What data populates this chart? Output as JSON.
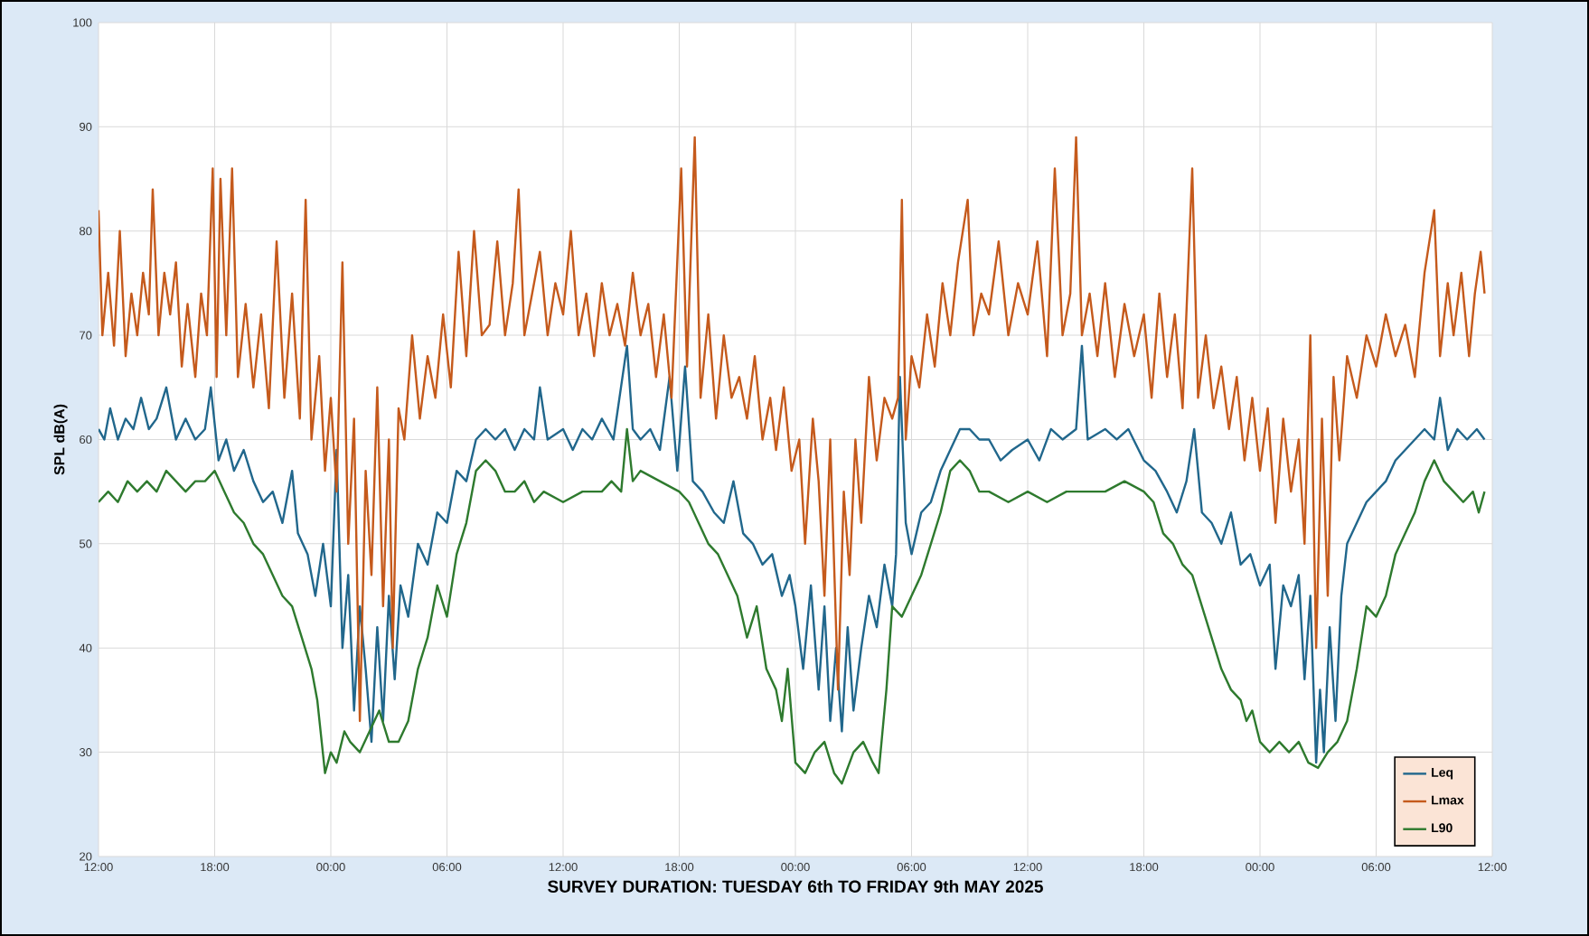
{
  "chart_data": {
    "type": "line",
    "xlabel": "SURVEY DURATION: TUESDAY 6th TO FRIDAY 9th MAY 2025",
    "ylabel": "SPL dB(A)",
    "xlim": [
      "2025-05-06T12:00",
      "2025-05-09T12:00"
    ],
    "ylim": [
      20,
      100
    ],
    "yticks": [
      20,
      30,
      40,
      50,
      60,
      70,
      80,
      90,
      100
    ],
    "xticks": [
      {
        "value": "2025-05-06T12:00",
        "label": "12:00"
      },
      {
        "value": "2025-05-06T18:00",
        "label": "18:00"
      },
      {
        "value": "2025-05-07T00:00",
        "label": "00:00"
      },
      {
        "value": "2025-05-07T06:00",
        "label": "06:00"
      },
      {
        "value": "2025-05-07T12:00",
        "label": "12:00"
      },
      {
        "value": "2025-05-07T18:00",
        "label": "18:00"
      },
      {
        "value": "2025-05-08T00:00",
        "label": "00:00"
      },
      {
        "value": "2025-05-08T06:00",
        "label": "06:00"
      },
      {
        "value": "2025-05-08T12:00",
        "label": "12:00"
      },
      {
        "value": "2025-05-08T18:00",
        "label": "18:00"
      },
      {
        "value": "2025-05-09T00:00",
        "label": "00:00"
      },
      {
        "value": "2025-05-09T06:00",
        "label": "06:00"
      },
      {
        "value": "2025-05-09T12:00",
        "label": "12:00"
      }
    ],
    "grid": true,
    "legend": "bottom right",
    "series": [
      {
        "name": "Leq",
        "color": "#21678c",
        "x": [
          "2025-05-06T12:00",
          "2025-05-06T12:18",
          "2025-05-06T12:36",
          "2025-05-06T13:00",
          "2025-05-06T13:24",
          "2025-05-06T13:48",
          "2025-05-06T14:12",
          "2025-05-06T14:36",
          "2025-05-06T15:00",
          "2025-05-06T15:30",
          "2025-05-06T16:00",
          "2025-05-06T16:30",
          "2025-05-06T17:00",
          "2025-05-06T17:30",
          "2025-05-06T17:48",
          "2025-05-06T18:12",
          "2025-05-06T18:36",
          "2025-05-06T19:00",
          "2025-05-06T19:30",
          "2025-05-06T20:00",
          "2025-05-06T20:30",
          "2025-05-06T21:00",
          "2025-05-06T21:30",
          "2025-05-06T22:00",
          "2025-05-06T22:18",
          "2025-05-06T22:48",
          "2025-05-06T23:12",
          "2025-05-06T23:36",
          "2025-05-07T00:00",
          "2025-05-07T00:18",
          "2025-05-07T00:36",
          "2025-05-07T00:54",
          "2025-05-07T01:12",
          "2025-05-07T01:30",
          "2025-05-07T01:48",
          "2025-05-07T02:06",
          "2025-05-07T02:24",
          "2025-05-07T02:42",
          "2025-05-07T03:00",
          "2025-05-07T03:18",
          "2025-05-07T03:36",
          "2025-05-07T04:00",
          "2025-05-07T04:30",
          "2025-05-07T05:00",
          "2025-05-07T05:30",
          "2025-05-07T06:00",
          "2025-05-07T06:30",
          "2025-05-07T07:00",
          "2025-05-07T07:30",
          "2025-05-07T08:00",
          "2025-05-07T08:30",
          "2025-05-07T09:00",
          "2025-05-07T09:30",
          "2025-05-07T10:00",
          "2025-05-07T10:30",
          "2025-05-07T10:48",
          "2025-05-07T11:12",
          "2025-05-07T12:00",
          "2025-05-07T12:30",
          "2025-05-07T13:00",
          "2025-05-07T13:30",
          "2025-05-07T14:00",
          "2025-05-07T14:36",
          "2025-05-07T15:18",
          "2025-05-07T15:36",
          "2025-05-07T16:00",
          "2025-05-07T16:30",
          "2025-05-07T17:00",
          "2025-05-07T17:30",
          "2025-05-07T17:54",
          "2025-05-07T18:18",
          "2025-05-07T18:42",
          "2025-05-07T19:12",
          "2025-05-07T19:48",
          "2025-05-07T20:18",
          "2025-05-07T20:48",
          "2025-05-07T21:18",
          "2025-05-07T21:48",
          "2025-05-07T22:18",
          "2025-05-07T22:48",
          "2025-05-07T23:18",
          "2025-05-07T23:42",
          "2025-05-08T00:00",
          "2025-05-08T00:24",
          "2025-05-08T00:48",
          "2025-05-08T01:12",
          "2025-05-08T01:30",
          "2025-05-08T01:48",
          "2025-05-08T02:06",
          "2025-05-08T02:24",
          "2025-05-08T02:42",
          "2025-05-08T03:00",
          "2025-05-08T03:24",
          "2025-05-08T03:48",
          "2025-05-08T04:12",
          "2025-05-08T04:36",
          "2025-05-08T05:00",
          "2025-05-08T05:12",
          "2025-05-08T05:24",
          "2025-05-08T05:42",
          "2025-05-08T06:00",
          "2025-05-08T06:30",
          "2025-05-08T07:00",
          "2025-05-08T07:30",
          "2025-05-08T08:00",
          "2025-05-08T08:30",
          "2025-05-08T09:00",
          "2025-05-08T09:30",
          "2025-05-08T10:00",
          "2025-05-08T10:36",
          "2025-05-08T11:12",
          "2025-05-08T12:00",
          "2025-05-08T12:36",
          "2025-05-08T13:12",
          "2025-05-08T13:48",
          "2025-05-08T14:30",
          "2025-05-08T14:48",
          "2025-05-08T15:06",
          "2025-05-08T16:00",
          "2025-05-08T16:36",
          "2025-05-08T17:12",
          "2025-05-08T18:00",
          "2025-05-08T18:36",
          "2025-05-08T19:12",
          "2025-05-08T19:42",
          "2025-05-08T20:12",
          "2025-05-08T20:36",
          "2025-05-08T21:00",
          "2025-05-08T21:30",
          "2025-05-08T22:00",
          "2025-05-08T22:30",
          "2025-05-08T23:00",
          "2025-05-08T23:30",
          "2025-05-09T00:00",
          "2025-05-09T00:30",
          "2025-05-09T00:48",
          "2025-05-09T01:12",
          "2025-05-09T01:36",
          "2025-05-09T02:00",
          "2025-05-09T02:18",
          "2025-05-09T02:36",
          "2025-05-09T02:54",
          "2025-05-09T03:06",
          "2025-05-09T03:18",
          "2025-05-09T03:36",
          "2025-05-09T03:54",
          "2025-05-09T04:12",
          "2025-05-09T04:30",
          "2025-05-09T05:00",
          "2025-05-09T05:30",
          "2025-05-09T06:00",
          "2025-05-09T06:30",
          "2025-05-09T07:00",
          "2025-05-09T07:30",
          "2025-05-09T08:00",
          "2025-05-09T08:30",
          "2025-05-09T09:00",
          "2025-05-09T09:18",
          "2025-05-09T09:42",
          "2025-05-09T10:12",
          "2025-05-09T10:42",
          "2025-05-09T11:12",
          "2025-05-09T11:36"
        ],
        "values": [
          61,
          60,
          63,
          60,
          62,
          61,
          64,
          61,
          62,
          65,
          60,
          62,
          60,
          61,
          65,
          58,
          60,
          57,
          59,
          56,
          54,
          55,
          52,
          57,
          51,
          49,
          45,
          50,
          44,
          59,
          40,
          47,
          34,
          44,
          38,
          31,
          42,
          33,
          45,
          37,
          46,
          43,
          50,
          48,
          53,
          52,
          57,
          56,
          60,
          61,
          60,
          61,
          59,
          61,
          60,
          65,
          60,
          61,
          59,
          61,
          60,
          62,
          60,
          69,
          61,
          60,
          61,
          59,
          66,
          57,
          67,
          56,
          55,
          53,
          52,
          56,
          51,
          50,
          48,
          49,
          45,
          47,
          44,
          38,
          46,
          36,
          44,
          33,
          40,
          32,
          42,
          34,
          40,
          45,
          42,
          48,
          44,
          49,
          66,
          52,
          49,
          53,
          54,
          57,
          59,
          61,
          61,
          60,
          60,
          58,
          59,
          60,
          58,
          61,
          60,
          61,
          69,
          60,
          61,
          60,
          61,
          58,
          57,
          55,
          53,
          56,
          61,
          53,
          52,
          50,
          53,
          48,
          49,
          46,
          48,
          38,
          46,
          44,
          47,
          37,
          45,
          29,
          36,
          30,
          42,
          33,
          45,
          50,
          52,
          54,
          55,
          56,
          58,
          59,
          60,
          61,
          60,
          64,
          59,
          61,
          60,
          61,
          60
        ]
      },
      {
        "name": "Lmax",
        "color": "#c55a1c",
        "x": [
          "2025-05-06T12:00",
          "2025-05-06T12:12",
          "2025-05-06T12:30",
          "2025-05-06T12:48",
          "2025-05-06T13:06",
          "2025-05-06T13:24",
          "2025-05-06T13:42",
          "2025-05-06T14:00",
          "2025-05-06T14:18",
          "2025-05-06T14:36",
          "2025-05-06T14:48",
          "2025-05-06T15:06",
          "2025-05-06T15:24",
          "2025-05-06T15:42",
          "2025-05-06T16:00",
          "2025-05-06T16:18",
          "2025-05-06T16:36",
          "2025-05-06T17:00",
          "2025-05-06T17:18",
          "2025-05-06T17:36",
          "2025-05-06T17:54",
          "2025-05-06T18:06",
          "2025-05-06T18:18",
          "2025-05-06T18:36",
          "2025-05-06T18:54",
          "2025-05-06T19:12",
          "2025-05-06T19:36",
          "2025-05-06T20:00",
          "2025-05-06T20:24",
          "2025-05-06T20:48",
          "2025-05-06T21:12",
          "2025-05-06T21:36",
          "2025-05-06T22:00",
          "2025-05-06T22:24",
          "2025-05-06T22:42",
          "2025-05-06T23:00",
          "2025-05-06T23:24",
          "2025-05-06T23:42",
          "2025-05-07T00:00",
          "2025-05-07T00:18",
          "2025-05-07T00:36",
          "2025-05-07T00:54",
          "2025-05-07T01:12",
          "2025-05-07T01:30",
          "2025-05-07T01:48",
          "2025-05-07T02:06",
          "2025-05-07T02:24",
          "2025-05-07T02:42",
          "2025-05-07T03:00",
          "2025-05-07T03:12",
          "2025-05-07T03:30",
          "2025-05-07T03:48",
          "2025-05-07T04:12",
          "2025-05-07T04:36",
          "2025-05-07T05:00",
          "2025-05-07T05:24",
          "2025-05-07T05:48",
          "2025-05-07T06:12",
          "2025-05-07T06:36",
          "2025-05-07T07:00",
          "2025-05-07T07:24",
          "2025-05-07T07:48",
          "2025-05-07T08:12",
          "2025-05-07T08:36",
          "2025-05-07T09:00",
          "2025-05-07T09:24",
          "2025-05-07T09:42",
          "2025-05-07T10:00",
          "2025-05-07T10:24",
          "2025-05-07T10:48",
          "2025-05-07T11:12",
          "2025-05-07T11:36",
          "2025-05-07T12:00",
          "2025-05-07T12:24",
          "2025-05-07T12:48",
          "2025-05-07T13:12",
          "2025-05-07T13:36",
          "2025-05-07T14:00",
          "2025-05-07T14:24",
          "2025-05-07T14:48",
          "2025-05-07T15:12",
          "2025-05-07T15:36",
          "2025-05-07T16:00",
          "2025-05-07T16:24",
          "2025-05-07T16:48",
          "2025-05-07T17:12",
          "2025-05-07T17:36",
          "2025-05-07T18:06",
          "2025-05-07T18:24",
          "2025-05-07T18:48",
          "2025-05-07T19:06",
          "2025-05-07T19:30",
          "2025-05-07T19:54",
          "2025-05-07T20:18",
          "2025-05-07T20:42",
          "2025-05-07T21:06",
          "2025-05-07T21:30",
          "2025-05-07T21:54",
          "2025-05-07T22:18",
          "2025-05-07T22:42",
          "2025-05-07T23:00",
          "2025-05-07T23:24",
          "2025-05-07T23:48",
          "2025-05-08T00:12",
          "2025-05-08T00:30",
          "2025-05-08T00:54",
          "2025-05-08T01:12",
          "2025-05-08T01:30",
          "2025-05-08T01:48",
          "2025-05-08T02:12",
          "2025-05-08T02:30",
          "2025-05-08T02:48",
          "2025-05-08T03:06",
          "2025-05-08T03:24",
          "2025-05-08T03:48",
          "2025-05-08T04:12",
          "2025-05-08T04:36",
          "2025-05-08T05:00",
          "2025-05-08T05:18",
          "2025-05-08T05:30",
          "2025-05-08T05:42",
          "2025-05-08T06:00",
          "2025-05-08T06:24",
          "2025-05-08T06:48",
          "2025-05-08T07:12",
          "2025-05-08T07:36",
          "2025-05-08T08:00",
          "2025-05-08T08:24",
          "2025-05-08T08:54",
          "2025-05-08T09:12",
          "2025-05-08T09:36",
          "2025-05-08T10:00",
          "2025-05-08T10:30",
          "2025-05-08T11:00",
          "2025-05-08T11:30",
          "2025-05-08T12:00",
          "2025-05-08T12:30",
          "2025-05-08T13:00",
          "2025-05-08T13:24",
          "2025-05-08T13:48",
          "2025-05-08T14:12",
          "2025-05-08T14:30",
          "2025-05-08T14:48",
          "2025-05-08T15:12",
          "2025-05-08T15:36",
          "2025-05-08T16:00",
          "2025-05-08T16:30",
          "2025-05-08T17:00",
          "2025-05-08T17:30",
          "2025-05-08T18:00",
          "2025-05-08T18:24",
          "2025-05-08T18:48",
          "2025-05-08T19:12",
          "2025-05-08T19:36",
          "2025-05-08T20:00",
          "2025-05-08T20:30",
          "2025-05-08T20:48",
          "2025-05-08T21:12",
          "2025-05-08T21:36",
          "2025-05-08T22:00",
          "2025-05-08T22:24",
          "2025-05-08T22:48",
          "2025-05-08T23:12",
          "2025-05-08T23:36",
          "2025-05-09T00:00",
          "2025-05-09T00:24",
          "2025-05-09T00:48",
          "2025-05-09T01:12",
          "2025-05-09T01:36",
          "2025-05-09T02:00",
          "2025-05-09T02:18",
          "2025-05-09T02:36",
          "2025-05-09T02:54",
          "2025-05-09T03:12",
          "2025-05-09T03:30",
          "2025-05-09T03:48",
          "2025-05-09T04:06",
          "2025-05-09T04:30",
          "2025-05-09T05:00",
          "2025-05-09T05:30",
          "2025-05-09T06:00",
          "2025-05-09T06:30",
          "2025-05-09T07:00",
          "2025-05-09T07:30",
          "2025-05-09T08:00",
          "2025-05-09T08:30",
          "2025-05-09T09:00",
          "2025-05-09T09:18",
          "2025-05-09T09:42",
          "2025-05-09T10:00",
          "2025-05-09T10:24",
          "2025-05-09T10:48",
          "2025-05-09T11:06",
          "2025-05-09T11:24",
          "2025-05-09T11:36"
        ],
        "values": [
          82,
          70,
          76,
          69,
          80,
          68,
          74,
          70,
          76,
          72,
          84,
          70,
          76,
          72,
          77,
          67,
          73,
          66,
          74,
          70,
          86,
          66,
          85,
          70,
          86,
          66,
          73,
          65,
          72,
          63,
          79,
          64,
          74,
          62,
          83,
          60,
          68,
          57,
          64,
          55,
          77,
          50,
          62,
          33,
          57,
          47,
          65,
          44,
          60,
          40,
          63,
          60,
          70,
          62,
          68,
          64,
          72,
          65,
          78,
          68,
          80,
          70,
          71,
          79,
          70,
          75,
          84,
          70,
          74,
          78,
          70,
          75,
          72,
          80,
          70,
          74,
          68,
          75,
          70,
          73,
          69,
          76,
          70,
          73,
          66,
          72,
          64,
          86,
          67,
          89,
          64,
          72,
          62,
          70,
          64,
          66,
          62,
          68,
          60,
          64,
          59,
          65,
          57,
          60,
          50,
          62,
          56,
          45,
          60,
          36,
          55,
          47,
          60,
          52,
          66,
          58,
          64,
          62,
          64,
          83,
          60,
          68,
          65,
          72,
          67,
          75,
          70,
          77,
          83,
          70,
          74,
          72,
          79,
          70,
          75,
          72,
          79,
          68,
          86,
          70,
          74,
          89,
          70,
          74,
          68,
          75,
          66,
          73,
          68,
          72,
          64,
          74,
          66,
          72,
          63,
          86,
          64,
          70,
          63,
          67,
          61,
          66,
          58,
          64,
          57,
          63,
          52,
          62,
          55,
          60,
          50,
          70,
          40,
          62,
          45,
          66,
          58,
          68,
          64,
          70,
          67,
          72,
          68,
          71,
          66,
          76,
          82,
          68,
          75,
          70,
          76,
          68,
          74,
          78,
          74
        ]
      },
      {
        "name": "L90",
        "color": "#2e7a2e",
        "x": [
          "2025-05-06T12:00",
          "2025-05-06T12:30",
          "2025-05-06T13:00",
          "2025-05-06T13:30",
          "2025-05-06T14:00",
          "2025-05-06T14:30",
          "2025-05-06T15:00",
          "2025-05-06T15:30",
          "2025-05-06T16:00",
          "2025-05-06T16:30",
          "2025-05-06T17:00",
          "2025-05-06T17:30",
          "2025-05-06T18:00",
          "2025-05-06T18:30",
          "2025-05-06T19:00",
          "2025-05-06T19:30",
          "2025-05-06T20:00",
          "2025-05-06T20:30",
          "2025-05-06T21:00",
          "2025-05-06T21:30",
          "2025-05-06T22:00",
          "2025-05-06T22:30",
          "2025-05-06T23:00",
          "2025-05-06T23:18",
          "2025-05-06T23:42",
          "2025-05-07T00:00",
          "2025-05-07T00:18",
          "2025-05-07T00:42",
          "2025-05-07T01:00",
          "2025-05-07T01:30",
          "2025-05-07T02:00",
          "2025-05-07T02:30",
          "2025-05-07T03:00",
          "2025-05-07T03:30",
          "2025-05-07T04:00",
          "2025-05-07T04:30",
          "2025-05-07T05:00",
          "2025-05-07T05:30",
          "2025-05-07T06:00",
          "2025-05-07T06:30",
          "2025-05-07T07:00",
          "2025-05-07T07:30",
          "2025-05-07T08:00",
          "2025-05-07T08:30",
          "2025-05-07T09:00",
          "2025-05-07T09:30",
          "2025-05-07T10:00",
          "2025-05-07T10:30",
          "2025-05-07T11:00",
          "2025-05-07T12:00",
          "2025-05-07T13:00",
          "2025-05-07T14:00",
          "2025-05-07T14:30",
          "2025-05-07T15:00",
          "2025-05-07T15:18",
          "2025-05-07T15:36",
          "2025-05-07T16:00",
          "2025-05-07T17:00",
          "2025-05-07T18:00",
          "2025-05-07T18:30",
          "2025-05-07T19:00",
          "2025-05-07T19:30",
          "2025-05-07T20:00",
          "2025-05-07T20:30",
          "2025-05-07T21:00",
          "2025-05-07T21:30",
          "2025-05-07T22:00",
          "2025-05-07T22:30",
          "2025-05-07T23:00",
          "2025-05-07T23:18",
          "2025-05-07T23:36",
          "2025-05-08T00:00",
          "2025-05-08T00:30",
          "2025-05-08T01:00",
          "2025-05-08T01:30",
          "2025-05-08T02:00",
          "2025-05-08T02:24",
          "2025-05-08T03:00",
          "2025-05-08T03:30",
          "2025-05-08T04:00",
          "2025-05-08T04:18",
          "2025-05-08T04:42",
          "2025-05-08T05:00",
          "2025-05-08T05:30",
          "2025-05-08T06:00",
          "2025-05-08T06:30",
          "2025-05-08T07:00",
          "2025-05-08T07:30",
          "2025-05-08T08:00",
          "2025-05-08T08:30",
          "2025-05-08T09:00",
          "2025-05-08T09:30",
          "2025-05-08T10:00",
          "2025-05-08T11:00",
          "2025-05-08T12:00",
          "2025-05-08T13:00",
          "2025-05-08T14:00",
          "2025-05-08T15:00",
          "2025-05-08T16:00",
          "2025-05-08T17:00",
          "2025-05-08T18:00",
          "2025-05-08T18:30",
          "2025-05-08T19:00",
          "2025-05-08T19:30",
          "2025-05-08T20:00",
          "2025-05-08T20:30",
          "2025-05-08T21:00",
          "2025-05-08T21:30",
          "2025-05-08T22:00",
          "2025-05-08T22:30",
          "2025-05-08T23:00",
          "2025-05-08T23:18",
          "2025-05-08T23:36",
          "2025-05-09T00:00",
          "2025-05-09T00:30",
          "2025-05-09T01:00",
          "2025-05-09T01:30",
          "2025-05-09T02:00",
          "2025-05-09T02:30",
          "2025-05-09T03:00",
          "2025-05-09T03:30",
          "2025-05-09T04:00",
          "2025-05-09T04:30",
          "2025-05-09T05:00",
          "2025-05-09T05:30",
          "2025-05-09T06:00",
          "2025-05-09T06:30",
          "2025-05-09T07:00",
          "2025-05-09T07:30",
          "2025-05-09T08:00",
          "2025-05-09T08:30",
          "2025-05-09T09:00",
          "2025-05-09T09:30",
          "2025-05-09T10:00",
          "2025-05-09T10:30",
          "2025-05-09T11:00",
          "2025-05-09T11:18",
          "2025-05-09T11:36"
        ],
        "values": [
          54,
          55,
          54,
          56,
          55,
          56,
          55,
          57,
          56,
          55,
          56,
          56,
          57,
          55,
          53,
          52,
          50,
          49,
          47,
          45,
          44,
          41,
          38,
          35,
          28,
          30,
          29,
          32,
          31,
          30,
          32,
          34,
          31,
          31,
          33,
          38,
          41,
          46,
          43,
          49,
          52,
          57,
          58,
          57,
          55,
          55,
          56,
          54,
          55,
          54,
          55,
          55,
          56,
          55,
          61,
          56,
          57,
          56,
          55,
          54,
          52,
          50,
          49,
          47,
          45,
          41,
          44,
          38,
          36,
          33,
          38,
          29,
          28,
          30,
          31,
          28,
          27,
          30,
          31,
          29,
          28,
          36,
          44,
          43,
          45,
          47,
          50,
          53,
          57,
          58,
          57,
          55,
          55,
          54,
          55,
          54,
          55,
          55,
          55,
          56,
          55,
          54,
          51,
          50,
          48,
          47,
          44,
          41,
          38,
          36,
          35,
          33,
          34,
          31,
          30,
          31,
          30,
          31,
          29,
          28.5,
          30,
          31,
          33,
          38,
          44,
          43,
          45,
          49,
          51,
          53,
          56,
          58,
          56,
          55,
          54,
          55,
          53,
          55
        ]
      }
    ]
  }
}
